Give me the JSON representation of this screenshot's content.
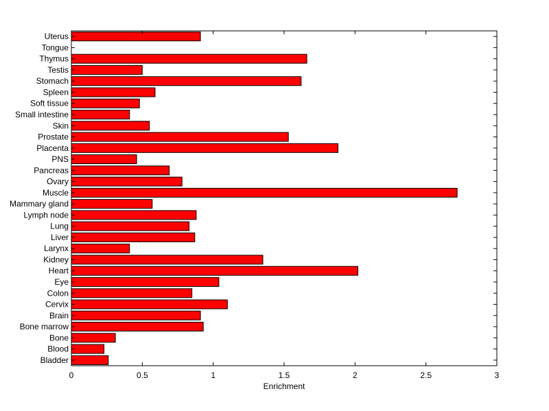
{
  "chart_data": {
    "type": "bar",
    "orientation": "horizontal",
    "title": "",
    "xlabel": "Enrichment",
    "ylabel": "",
    "xlim": [
      0,
      3
    ],
    "x_ticks": [
      "0",
      "0.5",
      "1",
      "1.5",
      "2",
      "2.5",
      "3"
    ],
    "grid": false,
    "bar_color": "#ff0000",
    "bar_edge_color": "#000000",
    "categories": [
      "Bladder",
      "Blood",
      "Bone",
      "Bone marrow",
      "Brain",
      "Cervix",
      "Colon",
      "Eye",
      "Heart",
      "Kidney",
      "Larynx",
      "Liver",
      "Lung",
      "Lymph node",
      "Mammary gland",
      "Muscle",
      "Ovary",
      "Pancreas",
      "PNS",
      "Placenta",
      "Prostate",
      "Skin",
      "Small intestine",
      "Soft tissue",
      "Spleen",
      "Stomach",
      "Testis",
      "Thymus",
      "Tongue",
      "Uterus"
    ],
    "values": [
      0.26,
      0.23,
      0.31,
      0.93,
      0.91,
      1.1,
      0.85,
      1.04,
      2.02,
      1.35,
      0.41,
      0.87,
      0.83,
      0.88,
      0.57,
      2.72,
      0.78,
      0.69,
      0.46,
      1.88,
      1.53,
      0.55,
      0.41,
      0.48,
      0.59,
      1.62,
      0.5,
      1.66,
      0,
      0.91
    ]
  }
}
